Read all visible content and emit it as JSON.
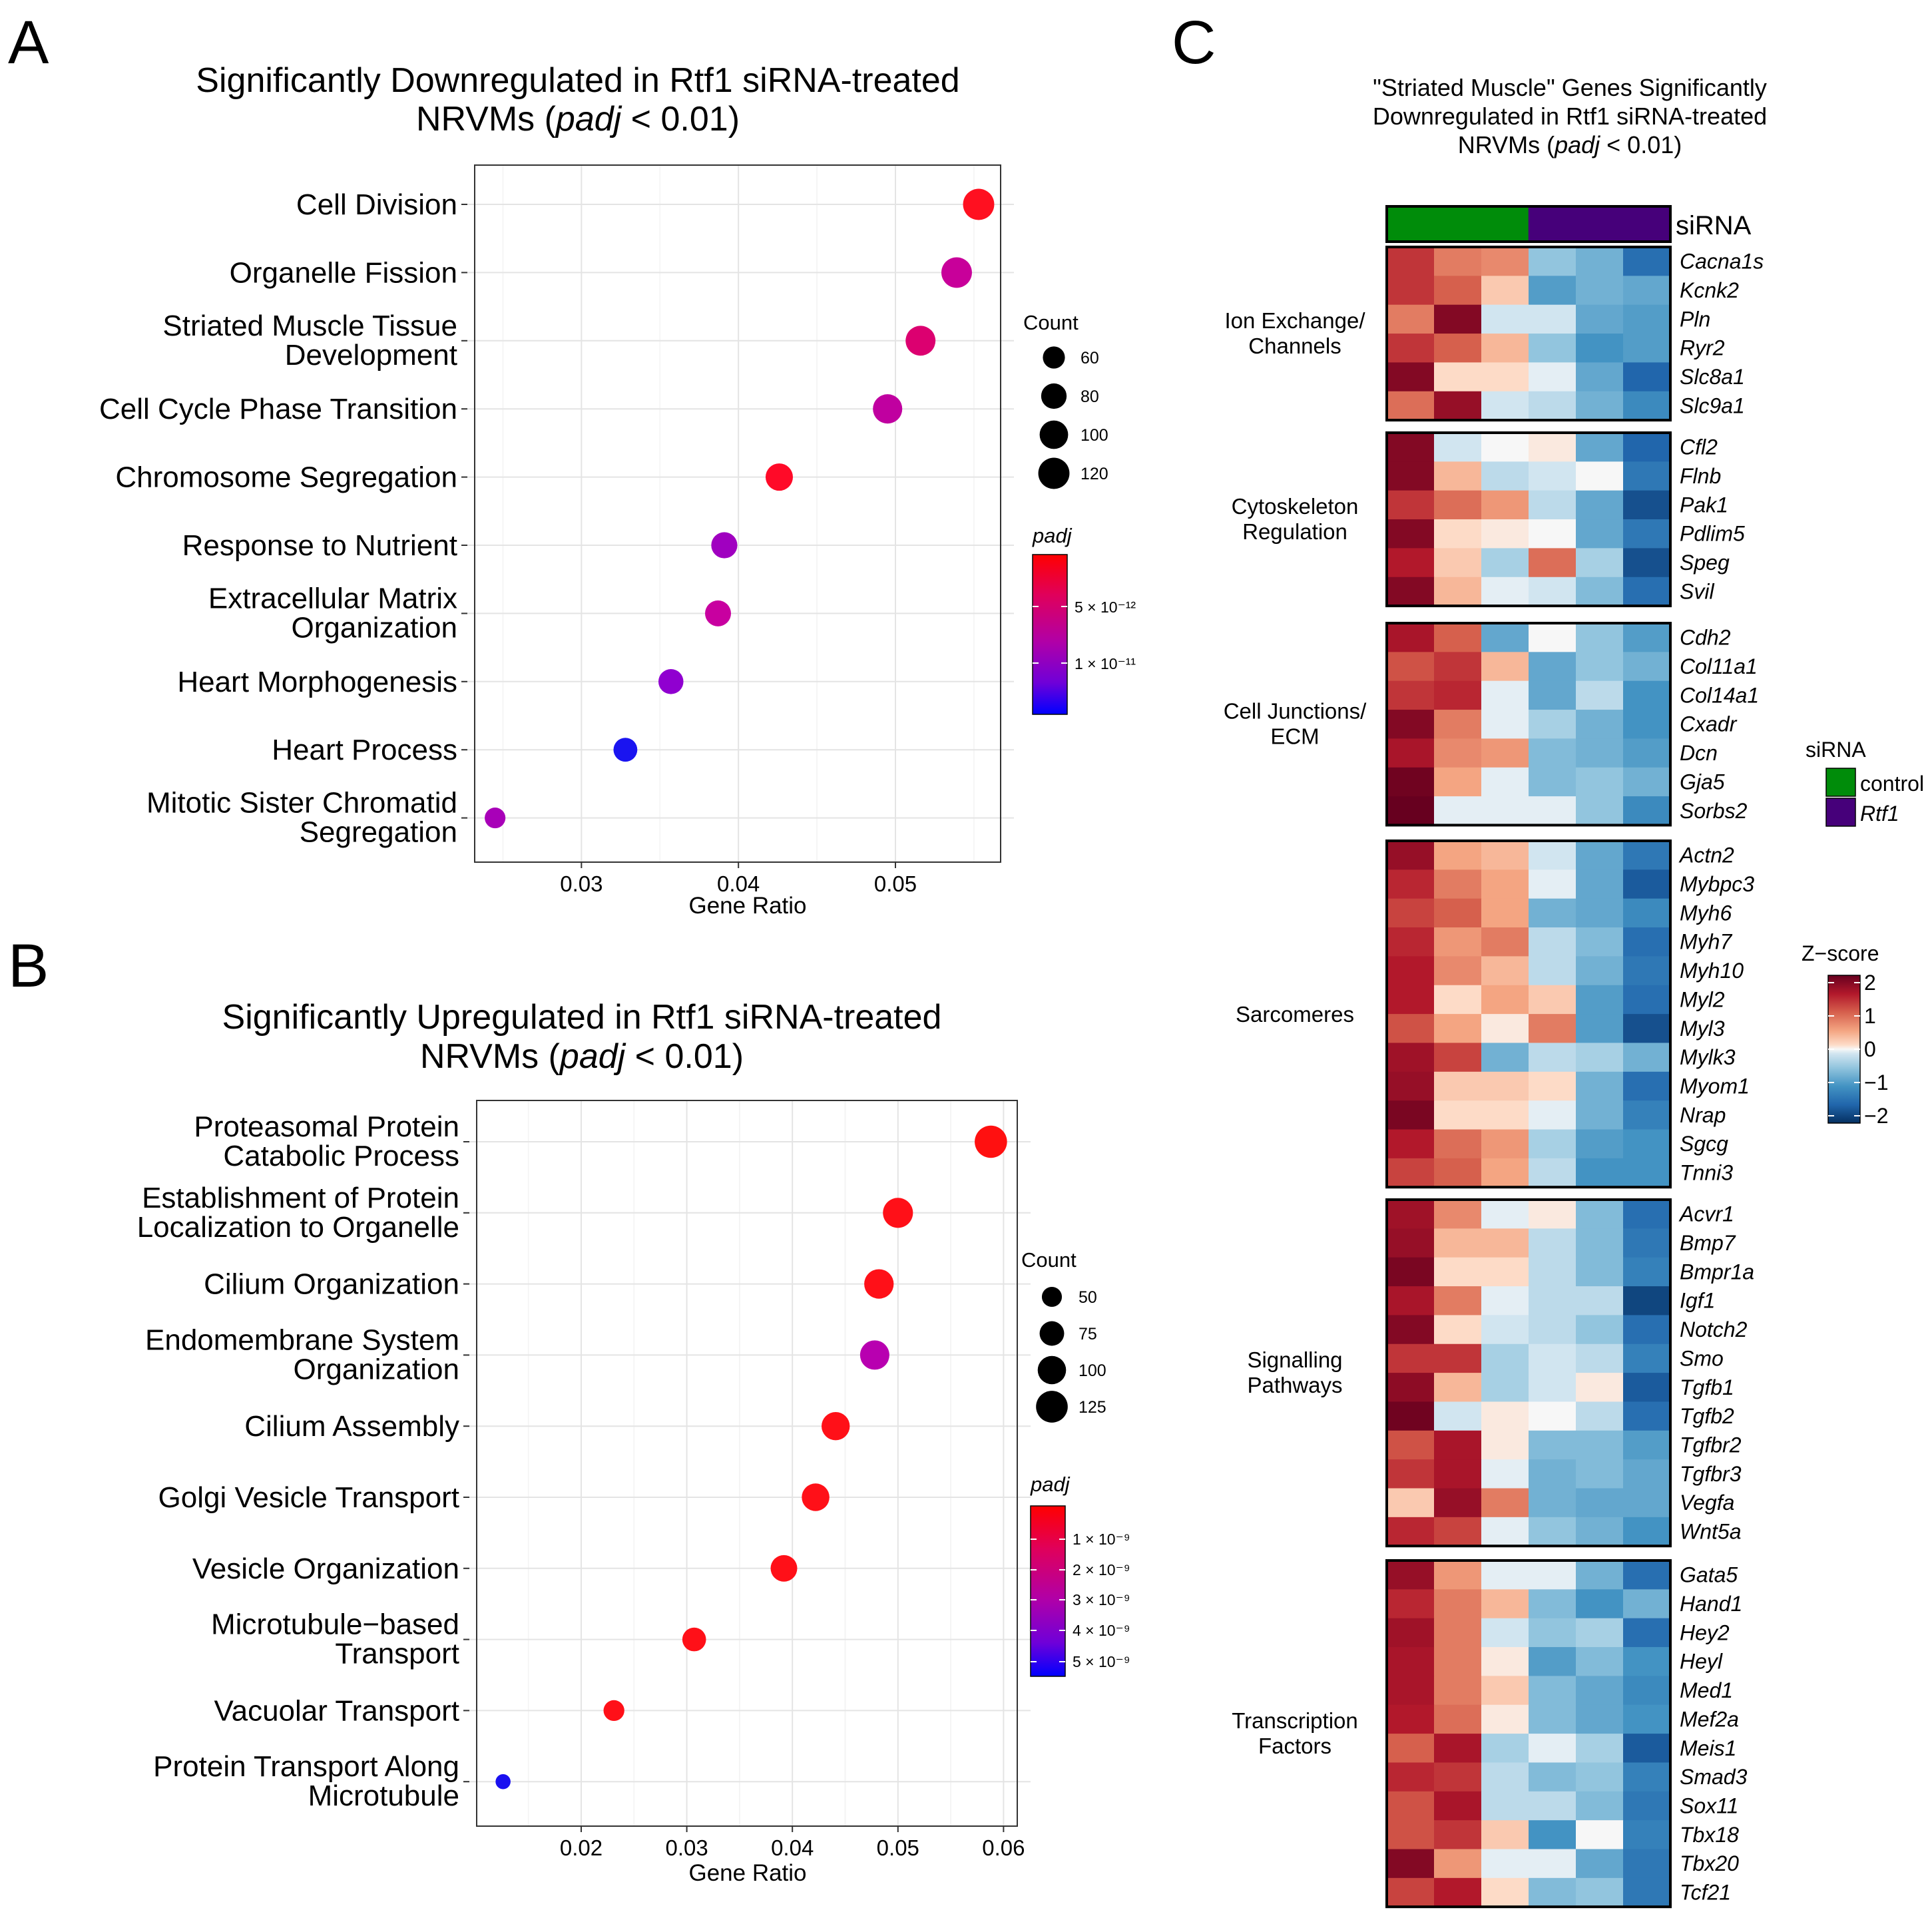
{
  "panel_letters": {
    "a": "A",
    "b": "B",
    "c": "C"
  },
  "chart_data": [
    {
      "type": "scatter",
      "panel": "A",
      "title_line1": "Significantly Downregulated in Rtf1 siRNA-treated",
      "title_line2_pre": "NRVMs (",
      "title_line2_ital": "padj",
      "title_line2_post": " < 0.01)",
      "xlabel": "Gene Ratio",
      "xlim": [
        0.0232,
        0.0567
      ],
      "xticks": [
        0.03,
        0.04,
        0.05
      ],
      "xtick_labels": [
        "0.03",
        "0.04",
        "0.05"
      ],
      "terms": [
        {
          "lines": [
            "Cell Division"
          ],
          "x": 0.0553,
          "count": 120,
          "color": "#FF1020"
        },
        {
          "lines": [
            "Organelle Fission"
          ],
          "x": 0.0539,
          "count": 115,
          "color": "#C8009A"
        },
        {
          "lines": [
            "Striated Muscle Tissue",
            "Development"
          ],
          "x": 0.0516,
          "count": 110,
          "color": "#DC0070"
        },
        {
          "lines": [
            "Cell Cycle Phase Transition"
          ],
          "x": 0.0495,
          "count": 106,
          "color": "#C000A0"
        },
        {
          "lines": [
            "Chromosome Segregation"
          ],
          "x": 0.0426,
          "count": 92,
          "color": "#FF0A28"
        },
        {
          "lines": [
            "Response to Nutrient"
          ],
          "x": 0.0391,
          "count": 84,
          "color": "#A000C0"
        },
        {
          "lines": [
            "Extracellular Matrix",
            "Organization"
          ],
          "x": 0.0387,
          "count": 83,
          "color": "#C800A0"
        },
        {
          "lines": [
            "Heart Morphogenesis"
          ],
          "x": 0.0357,
          "count": 77,
          "color": "#9000D0"
        },
        {
          "lines": [
            "Heart Process"
          ],
          "x": 0.0328,
          "count": 70,
          "color": "#1A14F0"
        },
        {
          "lines": [
            "Mitotic Sister Chromatid",
            "Segregation"
          ],
          "x": 0.0245,
          "count": 53,
          "color": "#A800B8"
        }
      ],
      "legend_count": {
        "title": "Count",
        "values": [
          60,
          80,
          100,
          120
        ],
        "labels": [
          "60",
          "80",
          "100",
          "120"
        ]
      },
      "legend_color": {
        "title": "padj",
        "labels": [
          "5 × 10⁻¹²",
          "1 × 10⁻¹¹"
        ]
      }
    },
    {
      "type": "scatter",
      "panel": "B",
      "title_line1": "Significantly Upregulated in Rtf1 siRNA-treated",
      "title_line2_pre": "NRVMs (",
      "title_line2_ital": "padj",
      "title_line2_post": " < 0.01)",
      "xlabel": "Gene Ratio",
      "xlim": [
        0.0101,
        0.0613
      ],
      "xticks": [
        0.02,
        0.03,
        0.04,
        0.05,
        0.06
      ],
      "xtick_labels": [
        "0.02",
        "0.03",
        "0.04",
        "0.05",
        "0.06"
      ],
      "terms": [
        {
          "lines": [
            "Proteasomal Protein",
            "Catabolic Process"
          ],
          "x": 0.0588,
          "count": 130,
          "color": "#FF1010"
        },
        {
          "lines": [
            "Establishment of Protein",
            "Localization to Organelle"
          ],
          "x": 0.05,
          "count": 112,
          "color": "#FF1018"
        },
        {
          "lines": [
            "Cilium Organization"
          ],
          "x": 0.0482,
          "count": 108,
          "color": "#FF1018"
        },
        {
          "lines": [
            "Endomembrane System",
            "Organization"
          ],
          "x": 0.0478,
          "count": 107,
          "color": "#B800B0"
        },
        {
          "lines": [
            "Cilium Assembly"
          ],
          "x": 0.0441,
          "count": 99,
          "color": "#FF1018"
        },
        {
          "lines": [
            "Golgi Vesicle Transport"
          ],
          "x": 0.0422,
          "count": 95,
          "color": "#FF1018"
        },
        {
          "lines": [
            "Vesicle Organization"
          ],
          "x": 0.0392,
          "count": 88,
          "color": "#FF1018"
        },
        {
          "lines": [
            "Microtubule−based",
            "Transport"
          ],
          "x": 0.0307,
          "count": 70,
          "color": "#FF1018"
        },
        {
          "lines": [
            "Vacuolar Transport"
          ],
          "x": 0.0231,
          "count": 54,
          "color": "#FF1018"
        },
        {
          "lines": [
            "Protein Transport Along",
            "Microtubule"
          ],
          "x": 0.0126,
          "count": 28,
          "color": "#1A10F0"
        }
      ],
      "legend_count": {
        "title": "Count",
        "values": [
          50,
          75,
          100,
          125
        ],
        "labels": [
          "50",
          "75",
          "100",
          "125"
        ]
      },
      "legend_color": {
        "title": "padj",
        "labels": [
          "1 × 10⁻⁹",
          "2 × 10⁻⁹",
          "3 × 10⁻⁹",
          "4 × 10⁻⁹",
          "5 × 10⁻⁹"
        ]
      }
    },
    {
      "type": "heatmap",
      "panel": "C",
      "title_line1": "\"Striated Muscle\" Genes Significantly",
      "title_line2": "Downregulated in Rtf1 siRNA-treated",
      "title_line3_pre": "NRVMs (",
      "title_line3_ital": "padj",
      "title_line3_post": " < 0.01)",
      "annotation_label": "siRNA",
      "sample_groups": [
        "control",
        "control",
        "control",
        "Rtf1",
        "Rtf1",
        "Rtf1"
      ],
      "annotation_legend": {
        "title": "siRNA",
        "items": [
          {
            "label": "control",
            "color": "#008C0A"
          },
          {
            "label": "Rtf1",
            "color": "#46007A"
          }
        ]
      },
      "zscore_legend": {
        "title": "Z−score",
        "ticks": [
          2,
          1,
          0,
          -1,
          -2
        ],
        "labels": [
          "2",
          "1",
          "0",
          "−1",
          "−2"
        ]
      },
      "groups": [
        {
          "label_lines": [
            "Ion Exchange/",
            "Channels"
          ],
          "rows": [
            {
              "gene": "Cacna1s",
              "z": [
                1.3,
                0.8,
                0.7,
                -0.5,
                -0.7,
                -1.4
              ]
            },
            {
              "gene": "Kcnk2",
              "z": [
                1.3,
                1.0,
                0.3,
                -0.9,
                -0.7,
                -0.8
              ]
            },
            {
              "gene": "Pln",
              "z": [
                0.8,
                2.0,
                -0.2,
                -0.2,
                -0.8,
                -0.9
              ]
            },
            {
              "gene": "Ryr2",
              "z": [
                1.3,
                1.0,
                0.4,
                -0.5,
                -1.0,
                -0.9
              ]
            },
            {
              "gene": "Slc8a1",
              "z": [
                2.0,
                0.2,
                0.2,
                -0.1,
                -0.8,
                -1.5
              ]
            },
            {
              "gene": "Slc9a1",
              "z": [
                0.9,
                1.8,
                -0.2,
                -0.3,
                -0.7,
                -1.1
              ]
            }
          ]
        },
        {
          "label_lines": [
            "Cytoskeleton",
            "Regulation"
          ],
          "rows": [
            {
              "gene": "Cfl2",
              "z": [
                2.0,
                -0.2,
                0.0,
                0.1,
                -0.8,
                -1.5
              ]
            },
            {
              "gene": "Flnb",
              "z": [
                2.0,
                0.4,
                -0.3,
                -0.2,
                0.0,
                -1.3
              ]
            },
            {
              "gene": "Pak1",
              "z": [
                1.3,
                0.9,
                0.6,
                -0.3,
                -0.8,
                -1.7
              ]
            },
            {
              "gene": "Pdlim5",
              "z": [
                2.0,
                0.2,
                0.1,
                0.0,
                -0.8,
                -1.3
              ]
            },
            {
              "gene": "Speg",
              "z": [
                1.5,
                0.3,
                -0.4,
                0.9,
                -0.4,
                -1.7
              ]
            },
            {
              "gene": "Svil",
              "z": [
                2.0,
                0.4,
                -0.1,
                -0.2,
                -0.6,
                -1.4
              ]
            }
          ]
        },
        {
          "label_lines": [
            "Cell Junctions/",
            "ECM"
          ],
          "rows": [
            {
              "gene": "Cdh2",
              "z": [
                1.6,
                1.0,
                -0.8,
                0.0,
                -0.5,
                -0.9
              ]
            },
            {
              "gene": "Col11a1",
              "z": [
                1.1,
                1.3,
                0.4,
                -0.8,
                -0.5,
                -0.7
              ]
            },
            {
              "gene": "Col14a1",
              "z": [
                1.3,
                1.4,
                -0.1,
                -0.8,
                -0.3,
                -1.0
              ]
            },
            {
              "gene": "Cxadr",
              "z": [
                2.0,
                0.8,
                -0.1,
                -0.4,
                -0.7,
                -1.0
              ]
            },
            {
              "gene": "Dcn",
              "z": [
                1.6,
                0.7,
                0.6,
                -0.6,
                -0.7,
                -0.9
              ]
            },
            {
              "gene": "Gja5",
              "z": [
                2.2,
                0.5,
                -0.1,
                -0.6,
                -0.5,
                -0.7
              ]
            },
            {
              "gene": "Sorbs2",
              "z": [
                2.3,
                -0.1,
                -0.1,
                -0.1,
                -0.5,
                -1.1
              ]
            }
          ]
        },
        {
          "label_lines": [
            "Sarcomeres"
          ],
          "rows": [
            {
              "gene": "Actn2",
              "z": [
                1.8,
                0.5,
                0.4,
                -0.2,
                -0.8,
                -1.3
              ]
            },
            {
              "gene": "Mybpc3",
              "z": [
                1.4,
                0.8,
                0.5,
                -0.1,
                -0.8,
                -1.6
              ]
            },
            {
              "gene": "Myh6",
              "z": [
                1.2,
                1.0,
                0.5,
                -0.7,
                -0.8,
                -1.1
              ]
            },
            {
              "gene": "Myh7",
              "z": [
                1.4,
                0.6,
                0.8,
                -0.3,
                -0.6,
                -1.4
              ]
            },
            {
              "gene": "Myh10",
              "z": [
                1.5,
                0.7,
                0.4,
                -0.3,
                -0.7,
                -1.3
              ]
            },
            {
              "gene": "Myl2",
              "z": [
                1.5,
                0.2,
                0.5,
                0.3,
                -0.9,
                -1.4
              ]
            },
            {
              "gene": "Myl3",
              "z": [
                1.1,
                0.5,
                0.1,
                0.8,
                -0.9,
                -1.7
              ]
            },
            {
              "gene": "Mylk3",
              "z": [
                1.7,
                1.2,
                -0.7,
                -0.3,
                -0.4,
                -0.7
              ]
            },
            {
              "gene": "Myom1",
              "z": [
                1.8,
                0.3,
                0.3,
                0.2,
                -0.7,
                -1.4
              ]
            },
            {
              "gene": "Nrap",
              "z": [
                2.1,
                0.2,
                0.2,
                -0.1,
                -0.7,
                -1.2
              ]
            },
            {
              "gene": "Sgcg",
              "z": [
                1.5,
                0.9,
                0.6,
                -0.4,
                -0.9,
                -1.0
              ]
            },
            {
              "gene": "Tnni3",
              "z": [
                1.2,
                1.0,
                0.5,
                -0.3,
                -1.0,
                -1.0
              ]
            }
          ]
        },
        {
          "label_lines": [
            "Signalling",
            "Pathways"
          ],
          "rows": [
            {
              "gene": "Acvr1",
              "z": [
                1.7,
                0.7,
                -0.1,
                0.1,
                -0.6,
                -1.4
              ]
            },
            {
              "gene": "Bmp7",
              "z": [
                1.8,
                0.4,
                0.4,
                -0.3,
                -0.6,
                -1.3
              ]
            },
            {
              "gene": "Bmpr1a",
              "z": [
                2.1,
                0.2,
                0.2,
                -0.3,
                -0.6,
                -1.2
              ]
            },
            {
              "gene": "Igf1",
              "z": [
                1.6,
                0.8,
                -0.1,
                -0.3,
                -0.3,
                -1.8
              ]
            },
            {
              "gene": "Notch2",
              "z": [
                2.0,
                0.2,
                -0.2,
                -0.3,
                -0.5,
                -1.4
              ]
            },
            {
              "gene": "Smo",
              "z": [
                1.3,
                1.3,
                -0.4,
                -0.2,
                -0.3,
                -1.2
              ]
            },
            {
              "gene": "Tgfb1",
              "z": [
                1.9,
                0.4,
                -0.4,
                -0.2,
                0.1,
                -1.6
              ]
            },
            {
              "gene": "Tgfb2",
              "z": [
                2.2,
                -0.2,
                0.1,
                0.0,
                -0.3,
                -1.4
              ]
            },
            {
              "gene": "Tgfbr2",
              "z": [
                1.1,
                1.6,
                0.1,
                -0.6,
                -0.6,
                -0.9
              ]
            },
            {
              "gene": "Tgfbr3",
              "z": [
                1.3,
                1.6,
                -0.1,
                -0.7,
                -0.6,
                -0.8
              ]
            },
            {
              "gene": "Vegfa",
              "z": [
                0.3,
                1.8,
                0.8,
                -0.7,
                -0.8,
                -0.8
              ]
            },
            {
              "gene": "Wnt5a",
              "z": [
                1.4,
                1.2,
                -0.1,
                -0.5,
                -0.7,
                -1.0
              ]
            }
          ]
        },
        {
          "label_lines": [
            "Transcription",
            "Factors"
          ],
          "rows": [
            {
              "gene": "Gata5",
              "z": [
                1.8,
                0.6,
                -0.1,
                -0.1,
                -0.7,
                -1.4
              ]
            },
            {
              "gene": "Hand1",
              "z": [
                1.4,
                0.8,
                0.4,
                -0.6,
                -1.0,
                -0.7
              ]
            },
            {
              "gene": "Hey2",
              "z": [
                1.7,
                0.8,
                -0.2,
                -0.5,
                -0.4,
                -1.4
              ]
            },
            {
              "gene": "Heyl",
              "z": [
                1.6,
                0.8,
                0.1,
                -0.9,
                -0.6,
                -1.0
              ]
            },
            {
              "gene": "Med1",
              "z": [
                1.6,
                0.8,
                0.3,
                -0.6,
                -0.8,
                -1.1
              ]
            },
            {
              "gene": "Mef2a",
              "z": [
                1.5,
                0.9,
                0.1,
                -0.6,
                -0.8,
                -1.0
              ]
            },
            {
              "gene": "Meis1",
              "z": [
                1.0,
                1.6,
                -0.4,
                -0.1,
                -0.4,
                -1.6
              ]
            },
            {
              "gene": "Smad3",
              "z": [
                1.4,
                1.3,
                -0.3,
                -0.6,
                -0.5,
                -1.2
              ]
            },
            {
              "gene": "Sox11",
              "z": [
                1.1,
                1.6,
                -0.3,
                -0.3,
                -0.6,
                -1.3
              ]
            },
            {
              "gene": "Tbx18",
              "z": [
                1.1,
                1.3,
                0.3,
                -1.0,
                0.0,
                -1.2
              ]
            },
            {
              "gene": "Tbx20",
              "z": [
                2.0,
                0.6,
                -0.1,
                -0.1,
                -0.8,
                -1.3
              ]
            },
            {
              "gene": "Tcf21",
              "z": [
                1.2,
                1.5,
                0.2,
                -0.6,
                -0.5,
                -1.3
              ]
            }
          ]
        }
      ]
    }
  ]
}
